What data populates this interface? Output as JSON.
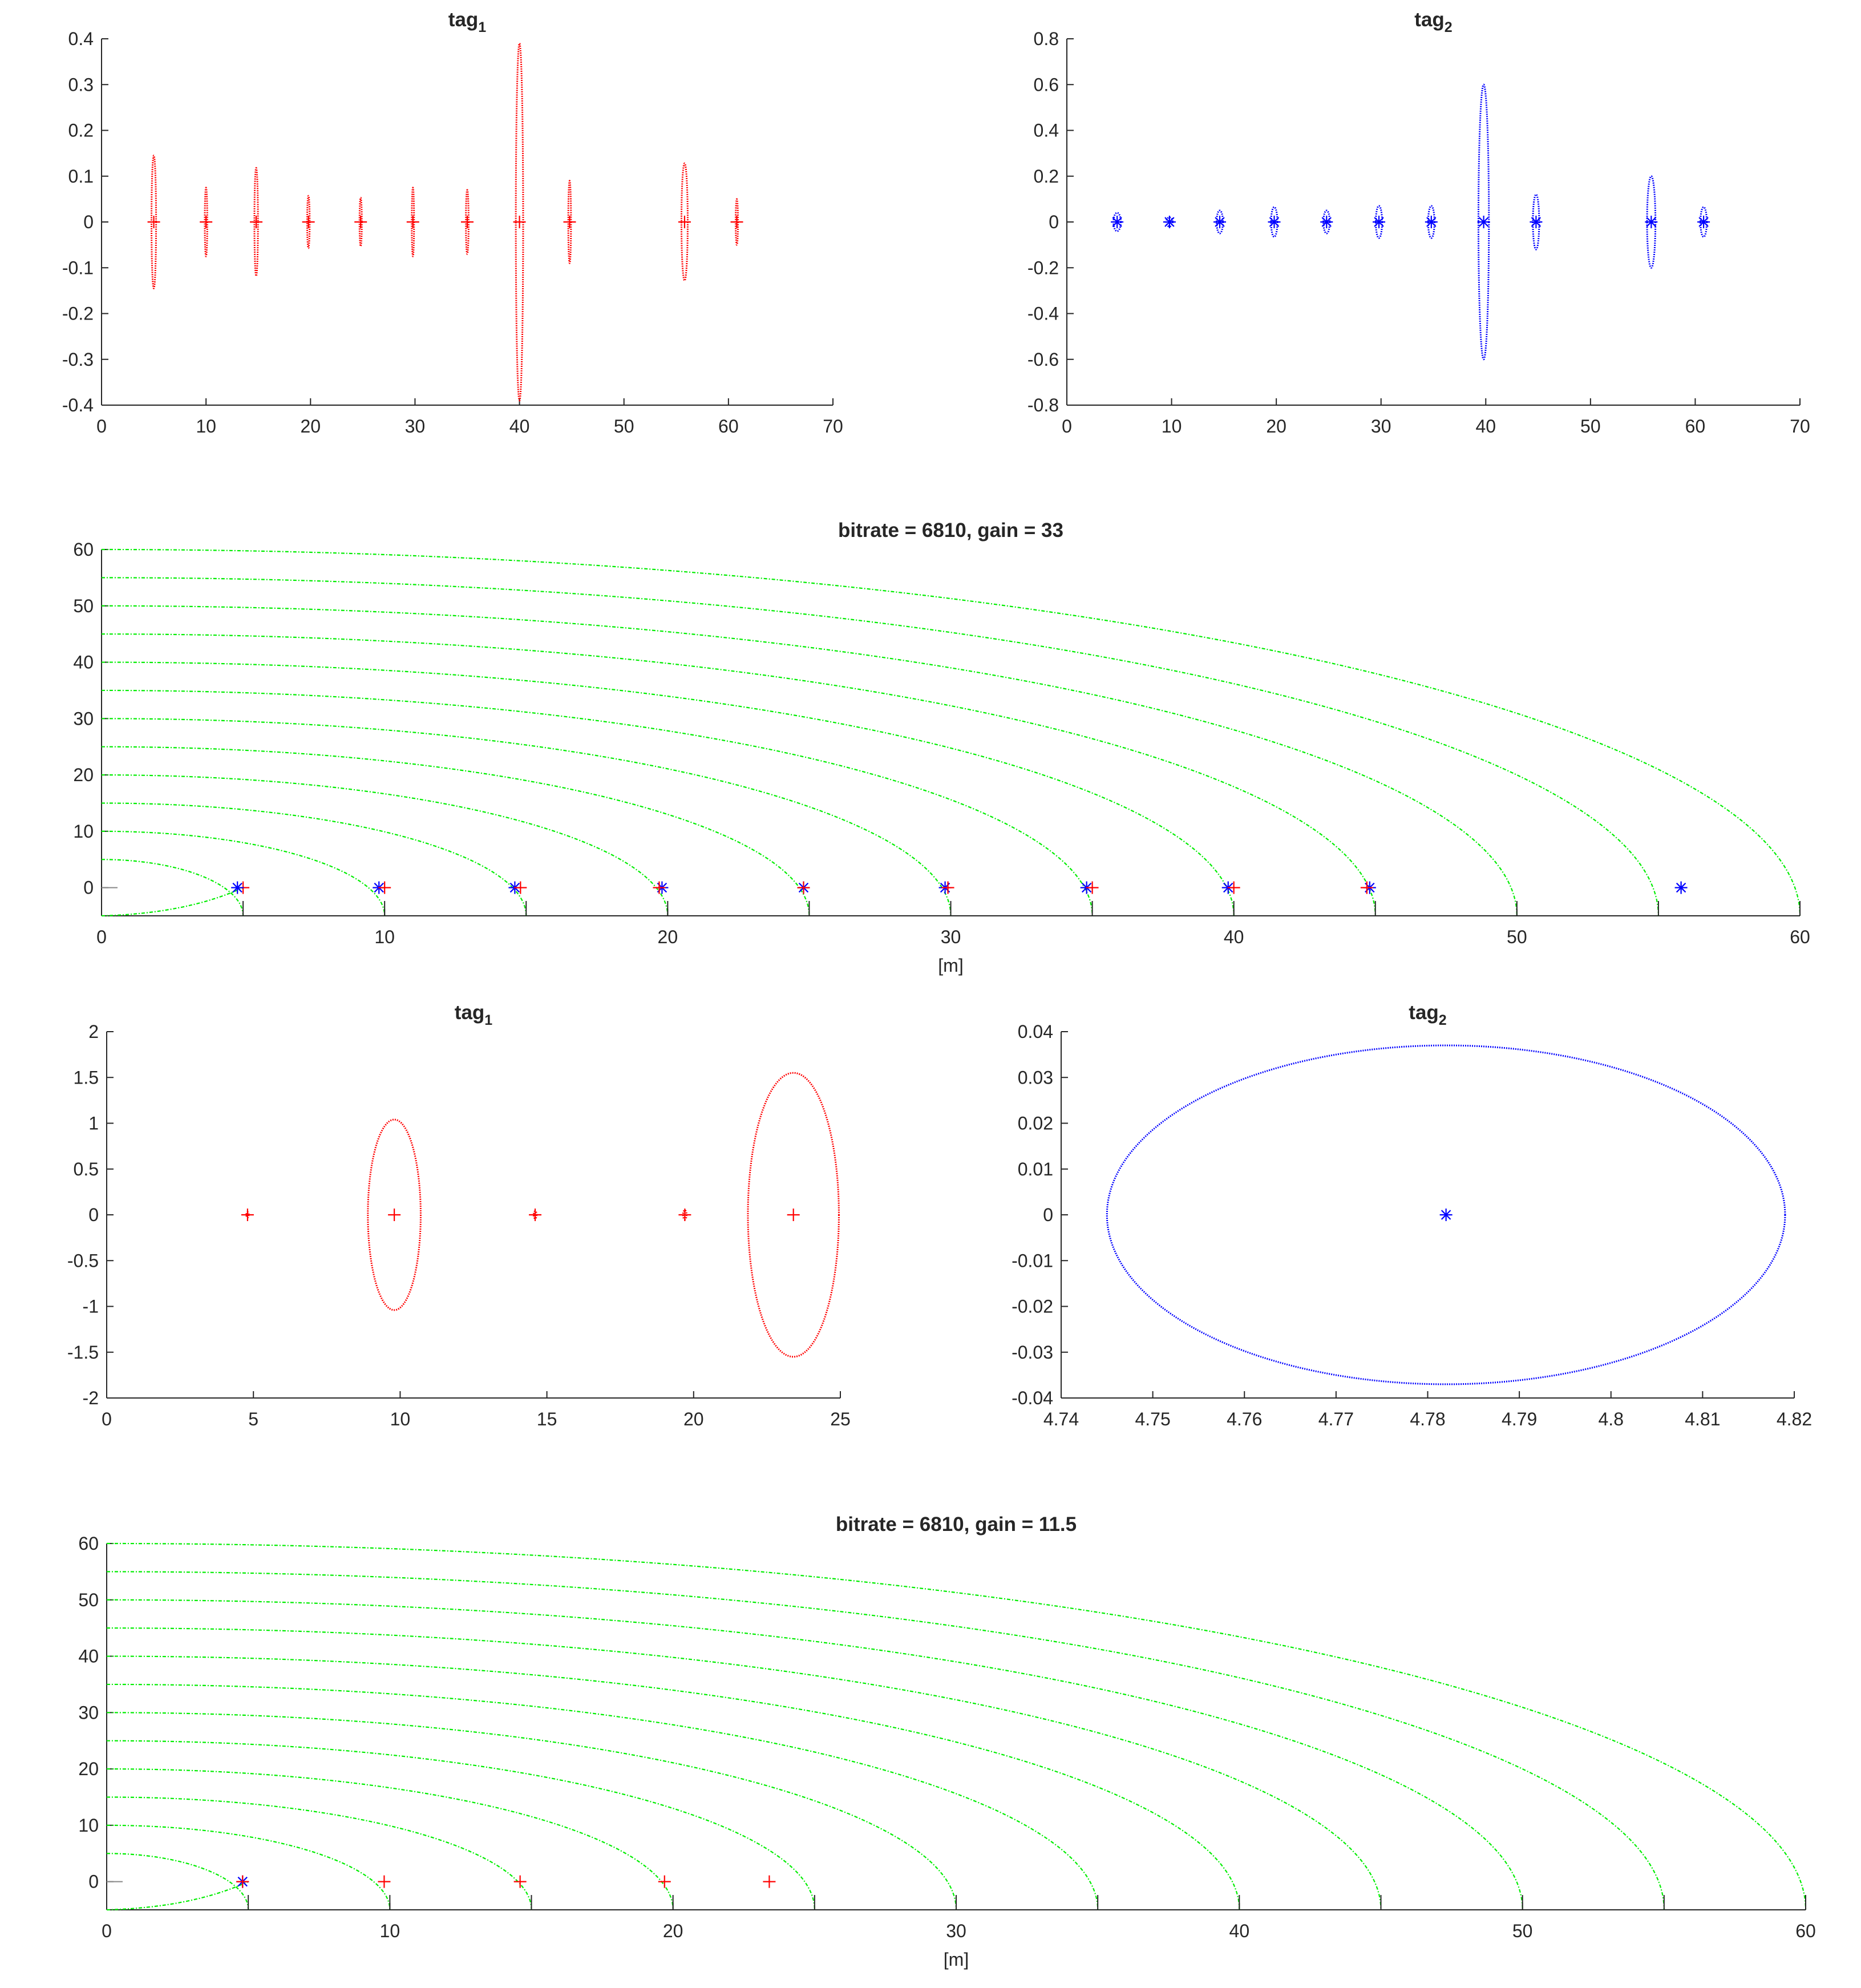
{
  "figure": {
    "background": "#ffffff",
    "axis_color": "#262626"
  },
  "chart_data": [
    {
      "id": "p1",
      "type": "scatter",
      "title": "tag",
      "title_sub": "1",
      "xlim": [
        0,
        70
      ],
      "ylim": [
        -0.4,
        0.4
      ],
      "xticks": [
        0,
        10,
        20,
        30,
        40,
        50,
        60,
        70
      ],
      "yticks": [
        -0.4,
        -0.3,
        -0.2,
        -0.1,
        0,
        0.1,
        0.2,
        0.3,
        0.4
      ],
      "xlabel": "",
      "ylabel": "",
      "grid": false,
      "color": "#ff0000",
      "ellipses": [
        {
          "cx": 5,
          "cy": 0,
          "rx": 0.22,
          "ry": 0.145
        },
        {
          "cx": 10,
          "cy": 0,
          "rx": 0.12,
          "ry": 0.075
        },
        {
          "cx": 14.8,
          "cy": 0,
          "rx": 0.17,
          "ry": 0.118
        },
        {
          "cx": 19.8,
          "cy": 0,
          "rx": 0.12,
          "ry": 0.057
        },
        {
          "cx": 24.8,
          "cy": 0,
          "rx": 0.1,
          "ry": 0.053
        },
        {
          "cx": 29.8,
          "cy": 0,
          "rx": 0.1,
          "ry": 0.075
        },
        {
          "cx": 35,
          "cy": 0,
          "rx": 0.13,
          "ry": 0.07
        },
        {
          "cx": 40,
          "cy": 0,
          "rx": 0.35,
          "ry": 0.39
        },
        {
          "cx": 44.8,
          "cy": 0,
          "rx": 0.13,
          "ry": 0.09
        },
        {
          "cx": 55.8,
          "cy": 0,
          "rx": 0.3,
          "ry": 0.128
        },
        {
          "cx": 60.8,
          "cy": 0,
          "rx": 0.08,
          "ry": 0.05
        }
      ],
      "markers": [
        {
          "x": 5,
          "y": 0,
          "shape": "plus"
        },
        {
          "x": 10,
          "y": 0,
          "shape": "plus"
        },
        {
          "x": 14.8,
          "y": 0,
          "shape": "plus"
        },
        {
          "x": 19.8,
          "y": 0,
          "shape": "plus"
        },
        {
          "x": 24.8,
          "y": 0,
          "shape": "plus"
        },
        {
          "x": 29.8,
          "y": 0,
          "shape": "plus"
        },
        {
          "x": 35,
          "y": 0,
          "shape": "plus"
        },
        {
          "x": 40,
          "y": 0,
          "shape": "plus"
        },
        {
          "x": 44.8,
          "y": 0,
          "shape": "plus"
        },
        {
          "x": 55.8,
          "y": 0,
          "shape": "plus"
        },
        {
          "x": 60.8,
          "y": 0,
          "shape": "plus"
        }
      ],
      "arcs": []
    },
    {
      "id": "p2",
      "type": "scatter",
      "title": "tag",
      "title_sub": "2",
      "xlim": [
        0,
        70
      ],
      "ylim": [
        -0.8,
        0.8
      ],
      "xticks": [
        0,
        10,
        20,
        30,
        40,
        50,
        60,
        70
      ],
      "yticks": [
        -0.8,
        -0.6,
        -0.4,
        -0.2,
        0,
        0.2,
        0.4,
        0.6,
        0.8
      ],
      "xlabel": "",
      "ylabel": "",
      "grid": false,
      "color": "#0000ff",
      "ellipses": [
        {
          "cx": 4.8,
          "cy": 0,
          "rx": 0.35,
          "ry": 0.04
        },
        {
          "cx": 9.8,
          "cy": 0,
          "rx": 0.3,
          "ry": 0.02
        },
        {
          "cx": 14.6,
          "cy": 0,
          "rx": 0.3,
          "ry": 0.05
        },
        {
          "cx": 19.8,
          "cy": 0,
          "rx": 0.3,
          "ry": 0.065
        },
        {
          "cx": 24.8,
          "cy": 0,
          "rx": 0.3,
          "ry": 0.05
        },
        {
          "cx": 29.8,
          "cy": 0,
          "rx": 0.3,
          "ry": 0.07
        },
        {
          "cx": 34.8,
          "cy": 0,
          "rx": 0.3,
          "ry": 0.07
        },
        {
          "cx": 39.8,
          "cy": 0,
          "rx": 0.5,
          "ry": 0.6
        },
        {
          "cx": 44.8,
          "cy": 0,
          "rx": 0.3,
          "ry": 0.12
        },
        {
          "cx": 55.8,
          "cy": 0,
          "rx": 0.4,
          "ry": 0.2
        },
        {
          "cx": 60.8,
          "cy": 0,
          "rx": 0.3,
          "ry": 0.065
        }
      ],
      "markers": [
        {
          "x": 4.8,
          "y": 0,
          "shape": "star"
        },
        {
          "x": 9.8,
          "y": 0,
          "shape": "star"
        },
        {
          "x": 14.6,
          "y": 0,
          "shape": "star"
        },
        {
          "x": 19.8,
          "y": 0,
          "shape": "star"
        },
        {
          "x": 24.8,
          "y": 0,
          "shape": "star"
        },
        {
          "x": 29.8,
          "y": 0,
          "shape": "star"
        },
        {
          "x": 34.8,
          "y": 0,
          "shape": "star"
        },
        {
          "x": 39.8,
          "y": 0,
          "shape": "star"
        },
        {
          "x": 44.8,
          "y": 0,
          "shape": "star"
        },
        {
          "x": 55.8,
          "y": 0,
          "shape": "star"
        },
        {
          "x": 60.8,
          "y": 0,
          "shape": "star"
        }
      ],
      "arcs": []
    },
    {
      "id": "p3",
      "type": "scatter",
      "title": "bitrate = 6810, gain = 33",
      "title_sub": "",
      "xlim": [
        0,
        60
      ],
      "ylim": [
        -5,
        60
      ],
      "xticks": [
        0,
        10,
        20,
        30,
        40,
        50,
        60
      ],
      "yticks": [
        0,
        10,
        20,
        30,
        40,
        50,
        60
      ],
      "xlabel": "[m]",
      "ylabel": "",
      "grid": false,
      "color": "#00ee00",
      "arcs": [
        5,
        10,
        15,
        20,
        25,
        30,
        35,
        40,
        45,
        50,
        55,
        60
      ],
      "ellipses": [],
      "markers": [
        {
          "x": 5.0,
          "y": 0,
          "shape": "plus",
          "color": "#ff0000"
        },
        {
          "x": 4.8,
          "y": 0,
          "shape": "star",
          "color": "#0000ff"
        },
        {
          "x": 9.8,
          "y": 0,
          "shape": "star",
          "color": "#0000ff"
        },
        {
          "x": 10.0,
          "y": 0,
          "shape": "plus",
          "color": "#ff0000"
        },
        {
          "x": 14.6,
          "y": 0,
          "shape": "star",
          "color": "#0000ff"
        },
        {
          "x": 14.8,
          "y": 0,
          "shape": "plus",
          "color": "#ff0000"
        },
        {
          "x": 19.8,
          "y": 0,
          "shape": "star",
          "color": "#0000ff"
        },
        {
          "x": 19.7,
          "y": 0,
          "shape": "plus",
          "color": "#ff0000"
        },
        {
          "x": 24.8,
          "y": 0,
          "shape": "star",
          "color": "#0000ff"
        },
        {
          "x": 24.8,
          "y": 0,
          "shape": "plus",
          "color": "#ff0000"
        },
        {
          "x": 29.8,
          "y": 0,
          "shape": "star",
          "color": "#0000ff"
        },
        {
          "x": 29.9,
          "y": 0,
          "shape": "plus",
          "color": "#ff0000"
        },
        {
          "x": 34.8,
          "y": 0,
          "shape": "star",
          "color": "#0000ff"
        },
        {
          "x": 35.0,
          "y": 0,
          "shape": "plus",
          "color": "#ff0000"
        },
        {
          "x": 39.8,
          "y": 0,
          "shape": "star",
          "color": "#0000ff"
        },
        {
          "x": 40.0,
          "y": 0,
          "shape": "plus",
          "color": "#ff0000"
        },
        {
          "x": 44.8,
          "y": 0,
          "shape": "star",
          "color": "#0000ff"
        },
        {
          "x": 44.7,
          "y": 0,
          "shape": "plus",
          "color": "#ff0000"
        },
        {
          "x": 55.8,
          "y": 0,
          "shape": "star",
          "color": "#0000ff"
        }
      ]
    },
    {
      "id": "p4",
      "type": "scatter",
      "title": "tag",
      "title_sub": "1",
      "xlim": [
        0,
        25
      ],
      "ylim": [
        -2,
        2
      ],
      "xticks": [
        0,
        5,
        10,
        15,
        20,
        25
      ],
      "yticks": [
        -2,
        -1.5,
        -1,
        -0.5,
        0,
        0.5,
        1,
        1.5,
        2
      ],
      "xlabel": "",
      "ylabel": "",
      "grid": false,
      "color": "#ff0000",
      "ellipses": [
        {
          "cx": 4.8,
          "cy": 0,
          "rx": 0.04,
          "ry": 0.03
        },
        {
          "cx": 9.8,
          "cy": 0,
          "rx": 0.9,
          "ry": 1.04
        },
        {
          "cx": 14.6,
          "cy": 0,
          "rx": 0.05,
          "ry": 0.04
        },
        {
          "cx": 19.7,
          "cy": 0,
          "rx": 0.06,
          "ry": 0.05
        },
        {
          "cx": 23.4,
          "cy": 0,
          "rx": 1.55,
          "ry": 1.55
        }
      ],
      "markers": [
        {
          "x": 4.8,
          "y": 0,
          "shape": "plus"
        },
        {
          "x": 9.8,
          "y": 0,
          "shape": "plus"
        },
        {
          "x": 14.6,
          "y": 0,
          "shape": "plus"
        },
        {
          "x": 19.7,
          "y": 0,
          "shape": "plus"
        },
        {
          "x": 23.4,
          "y": 0,
          "shape": "plus"
        }
      ],
      "arcs": []
    },
    {
      "id": "p5",
      "type": "scatter",
      "title": "tag",
      "title_sub": "2",
      "xlim": [
        4.74,
        4.82
      ],
      "ylim": [
        -0.04,
        0.04
      ],
      "xticks": [
        4.74,
        4.75,
        4.76,
        4.77,
        4.78,
        4.79,
        4.8,
        4.81,
        4.82
      ],
      "yticks": [
        -0.04,
        -0.03,
        -0.02,
        -0.01,
        0,
        0.01,
        0.02,
        0.03,
        0.04
      ],
      "xlabel": "",
      "ylabel": "",
      "grid": false,
      "color": "#0000ff",
      "ellipses": [
        {
          "cx": 4.782,
          "cy": 0,
          "rx": 0.037,
          "ry": 0.037
        }
      ],
      "markers": [
        {
          "x": 4.782,
          "y": 0,
          "shape": "star"
        }
      ],
      "arcs": []
    },
    {
      "id": "p6",
      "type": "scatter",
      "title": "bitrate = 6810, gain = 11.5",
      "title_sub": "",
      "xlim": [
        0,
        60
      ],
      "ylim": [
        -5,
        60
      ],
      "xticks": [
        0,
        10,
        20,
        30,
        40,
        50,
        60
      ],
      "yticks": [
        0,
        10,
        20,
        30,
        40,
        50,
        60
      ],
      "xlabel": "[m]",
      "ylabel": "",
      "grid": false,
      "color": "#00ee00",
      "arcs": [
        5,
        10,
        15,
        20,
        25,
        30,
        35,
        40,
        45,
        50,
        55,
        60
      ],
      "ellipses": [],
      "markers": [
        {
          "x": 4.8,
          "y": 0,
          "shape": "star",
          "color": "#0000ff"
        },
        {
          "x": 4.8,
          "y": 0,
          "shape": "plus",
          "color": "#ff0000"
        },
        {
          "x": 9.8,
          "y": 0,
          "shape": "plus",
          "color": "#ff0000"
        },
        {
          "x": 14.6,
          "y": 0,
          "shape": "plus",
          "color": "#ff0000"
        },
        {
          "x": 19.7,
          "y": 0,
          "shape": "plus",
          "color": "#ff0000"
        },
        {
          "x": 23.4,
          "y": 0,
          "shape": "plus",
          "color": "#ff0000"
        }
      ]
    }
  ]
}
